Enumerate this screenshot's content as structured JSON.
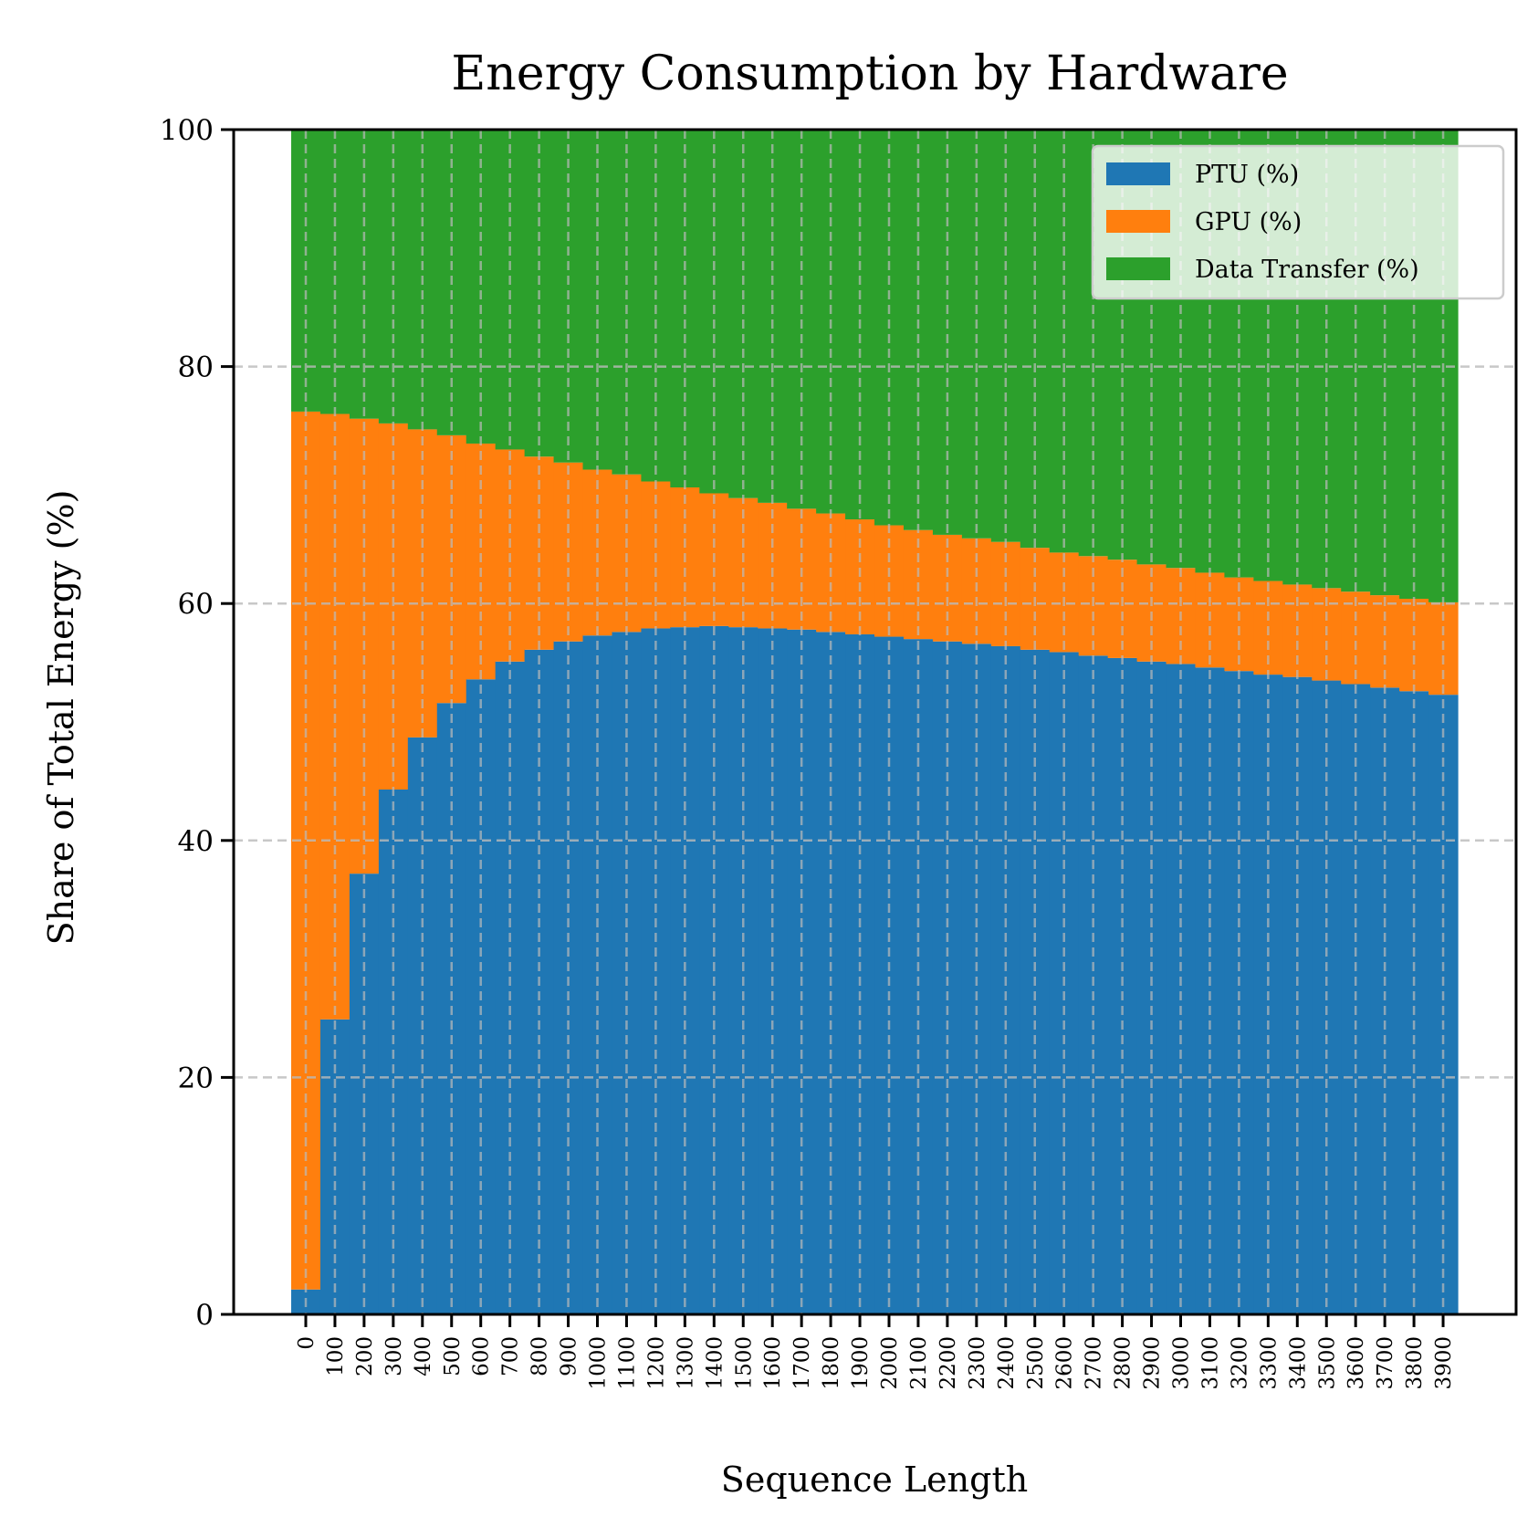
{
  "chart_data": {
    "type": "bar",
    "stacked": true,
    "title": "Energy Consumption by Hardware",
    "xlabel": "Sequence Length",
    "ylabel": "Share of Total Energy (%)",
    "ylim": [
      0,
      100
    ],
    "yticks": [
      0,
      20,
      40,
      60,
      80,
      100
    ],
    "grid": "dashed, both axes",
    "legend_position": "top-right",
    "categories": [
      "0",
      "100",
      "200",
      "300",
      "400",
      "500",
      "600",
      "700",
      "800",
      "900",
      "1000",
      "1100",
      "1200",
      "1300",
      "1400",
      "1500",
      "1600",
      "1700",
      "1800",
      "1900",
      "2000",
      "2100",
      "2200",
      "2300",
      "2400",
      "2500",
      "2600",
      "2700",
      "2800",
      "2900",
      "3000",
      "3100",
      "3200",
      "3300",
      "3400",
      "3500",
      "3600",
      "3700",
      "3800",
      "3900"
    ],
    "series": [
      {
        "name": "PTU (%)",
        "color": "#1f77b4",
        "values": [
          2.1,
          24.9,
          37.2,
          44.3,
          48.7,
          51.6,
          53.6,
          55.1,
          56.1,
          56.8,
          57.3,
          57.6,
          57.9,
          58.0,
          58.1,
          58.0,
          57.9,
          57.8,
          57.6,
          57.4,
          57.2,
          57.0,
          56.8,
          56.6,
          56.4,
          56.1,
          55.9,
          55.6,
          55.4,
          55.1,
          54.9,
          54.6,
          54.3,
          54.0,
          53.8,
          53.5,
          53.2,
          52.9,
          52.6,
          52.3
        ]
      },
      {
        "name": "GPU (%)",
        "color": "#ff7f0e",
        "values": [
          74.1,
          51.1,
          38.4,
          30.9,
          26.0,
          22.6,
          19.9,
          17.9,
          16.3,
          15.1,
          14.0,
          13.3,
          12.4,
          11.8,
          11.2,
          10.9,
          10.6,
          10.2,
          10.0,
          9.7,
          9.4,
          9.2,
          9.0,
          8.9,
          8.8,
          8.6,
          8.4,
          8.4,
          8.3,
          8.2,
          8.1,
          8.0,
          7.9,
          7.9,
          7.8,
          7.8,
          7.8,
          7.8,
          7.8,
          7.8
        ]
      },
      {
        "name": "Data Transfer (%)",
        "color": "#2ca02c",
        "values": [
          23.8,
          24.0,
          24.4,
          24.8,
          25.3,
          25.8,
          26.5,
          27.0,
          27.6,
          28.1,
          28.7,
          29.1,
          29.7,
          30.2,
          30.7,
          31.1,
          31.5,
          32.0,
          32.4,
          32.9,
          33.4,
          33.8,
          34.2,
          34.5,
          34.8,
          35.3,
          35.7,
          36.0,
          36.3,
          36.7,
          37.0,
          37.4,
          37.8,
          38.1,
          38.4,
          38.7,
          39.0,
          39.3,
          39.6,
          39.9
        ]
      }
    ]
  }
}
